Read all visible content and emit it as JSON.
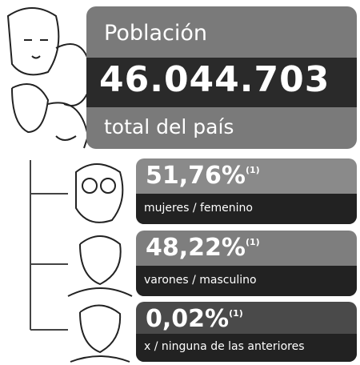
{
  "header": {
    "label": "Población",
    "value": "46.044.703",
    "caption": "total del país"
  },
  "items": [
    {
      "percent": "51,76%",
      "note": "(1)",
      "label": "mujeres / femenino"
    },
    {
      "percent": "48,22%",
      "note": "(1)",
      "label": "varones / masculino"
    },
    {
      "percent": "0,02%",
      "note": "(1)",
      "label": "x / ninguna de las anteriores"
    }
  ]
}
